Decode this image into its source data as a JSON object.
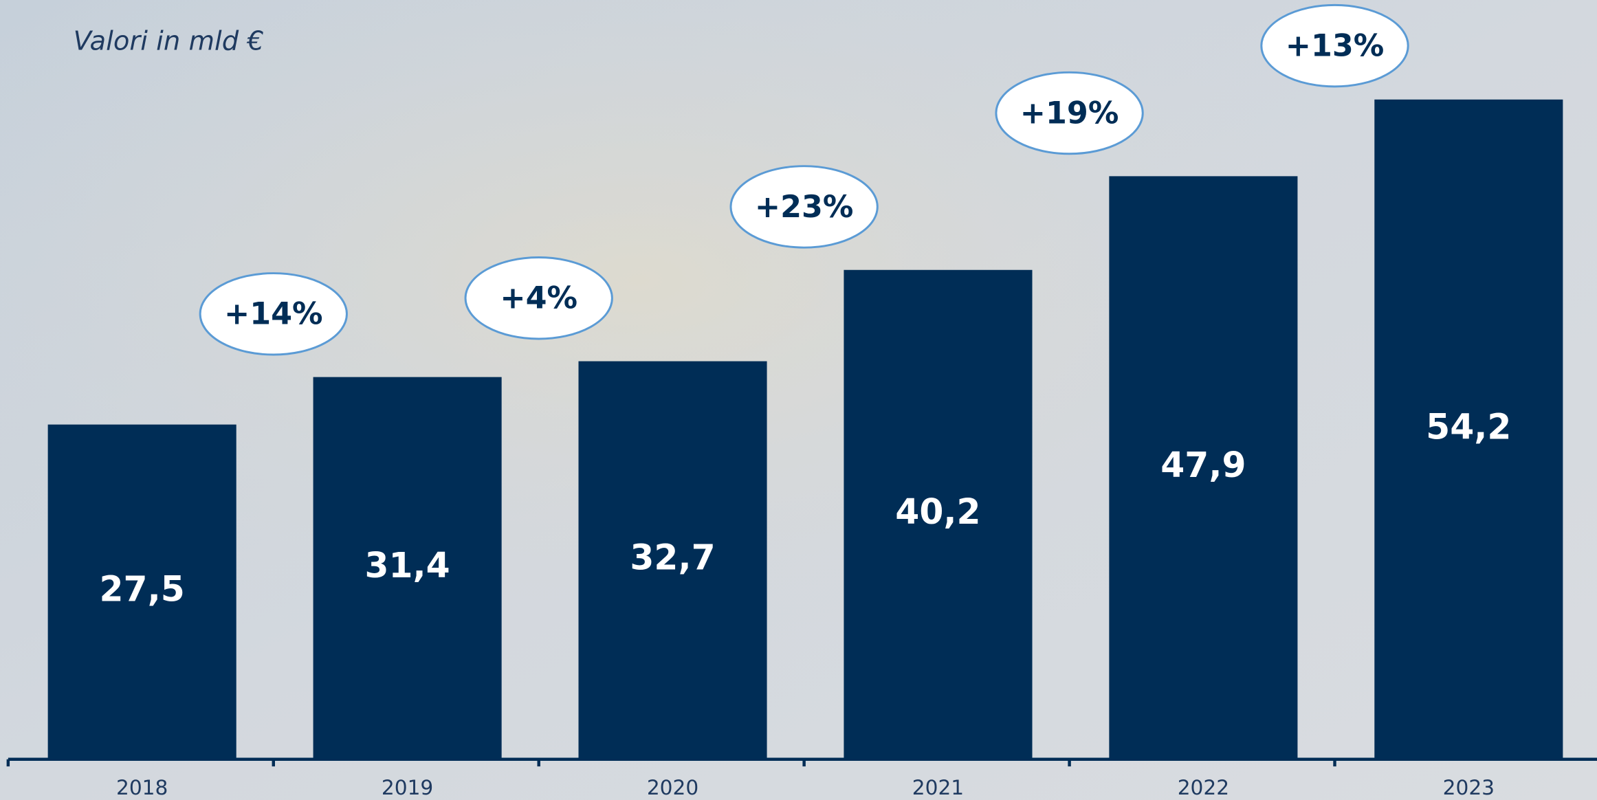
{
  "chart_data": {
    "type": "bar",
    "subtitle": "Valori in mld €",
    "categories": [
      "2018",
      "2019",
      "2020",
      "2021",
      "2022",
      "2023"
    ],
    "values": [
      27.5,
      31.4,
      32.7,
      40.2,
      47.9,
      54.2
    ],
    "value_labels": [
      "27,5",
      "31,4",
      "32,7",
      "40,2",
      "47,9",
      "54,2"
    ],
    "annotations": [
      "+14%",
      "+4%",
      "+23%",
      "+19%",
      "+13%"
    ],
    "color": "#002d56"
  }
}
